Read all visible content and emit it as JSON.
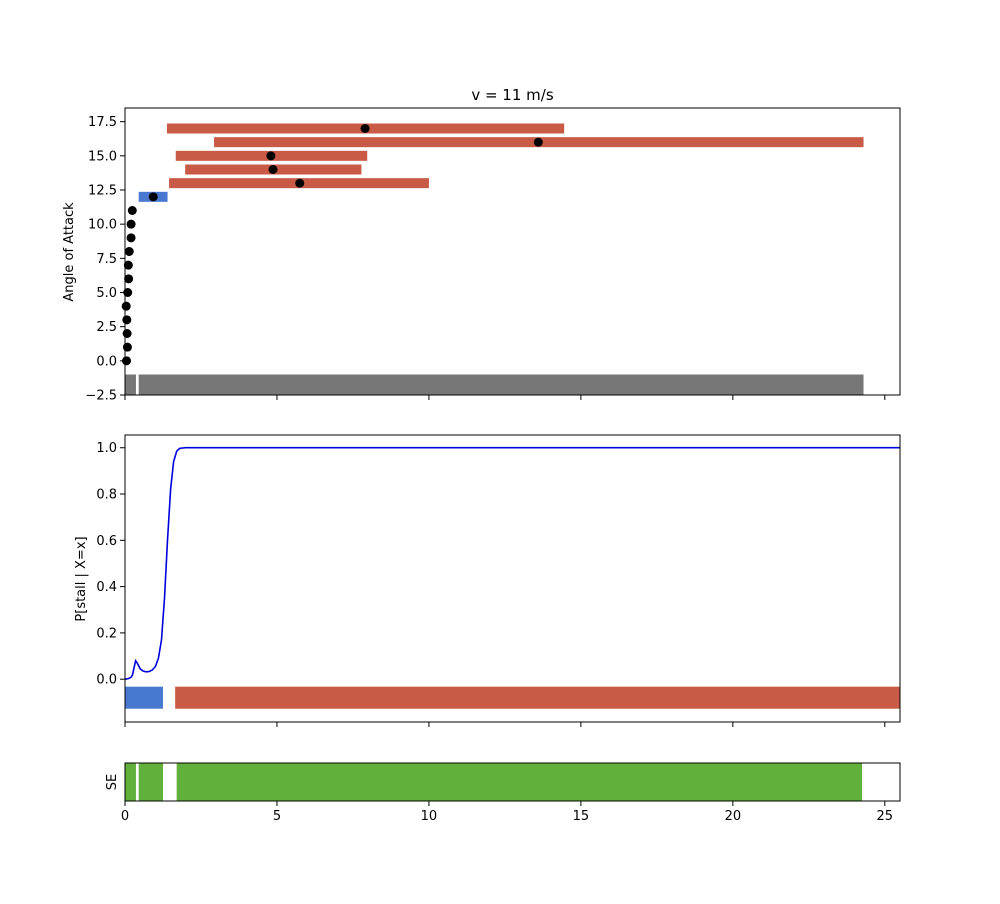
{
  "colors": {
    "red": "#c85a46",
    "blue": "#4878cf",
    "gray": "#777777",
    "green": "#62b03c",
    "curve": "#0000dd",
    "dot": "#000000"
  },
  "chart_data": [
    {
      "type": "scatter",
      "title": "v = 11 m/s",
      "ylabel": "Angle of Attack",
      "xlabel": "",
      "xlim": [
        0,
        25.5
      ],
      "ylim": [
        -2.5,
        18.5
      ],
      "yticks": [
        "−2.5",
        "0.0",
        "2.5",
        "5.0",
        "7.5",
        "10.0",
        "12.5",
        "15.0",
        "17.5"
      ],
      "ytick_values": [
        -2.5,
        0,
        2.5,
        5,
        7.5,
        10,
        12.5,
        15,
        17.5
      ],
      "xticks": [
        0,
        5,
        10,
        15,
        20,
        25
      ],
      "points": [
        {
          "x": 0.05,
          "y": 0
        },
        {
          "x": 0.08,
          "y": 1
        },
        {
          "x": 0.07,
          "y": 2
        },
        {
          "x": 0.06,
          "y": 3
        },
        {
          "x": 0.04,
          "y": 4
        },
        {
          "x": 0.09,
          "y": 5
        },
        {
          "x": 0.12,
          "y": 6
        },
        {
          "x": 0.11,
          "y": 7
        },
        {
          "x": 0.14,
          "y": 8
        },
        {
          "x": 0.2,
          "y": 9
        },
        {
          "x": 0.2,
          "y": 10
        },
        {
          "x": 0.24,
          "y": 11
        },
        {
          "x": 0.93,
          "y": 12
        },
        {
          "x": 5.75,
          "y": 13
        },
        {
          "x": 4.87,
          "y": 14
        },
        {
          "x": 4.8,
          "y": 15
        },
        {
          "x": 13.6,
          "y": 16
        },
        {
          "x": 7.9,
          "y": 17
        }
      ],
      "bars": [
        {
          "y": 12,
          "x0": 0.45,
          "x1": 1.4,
          "color": "blue"
        },
        {
          "y": 13,
          "x0": 1.45,
          "x1": 10.0,
          "color": "red"
        },
        {
          "y": 14,
          "x0": 1.98,
          "x1": 7.78,
          "color": "red"
        },
        {
          "y": 15,
          "x0": 1.67,
          "x1": 7.97,
          "color": "red"
        },
        {
          "y": 16,
          "x0": 2.93,
          "x1": 24.3,
          "color": "red"
        },
        {
          "y": 17,
          "x0": 1.38,
          "x1": 14.45,
          "color": "red"
        }
      ],
      "base_bars": [
        {
          "x0": 0.0,
          "x1": 0.36,
          "color": "gray"
        },
        {
          "x0": 0.45,
          "x1": 24.3,
          "color": "gray"
        }
      ]
    },
    {
      "type": "line",
      "ylabel": "P[stall | X=x]",
      "xlabel": "",
      "xlim": [
        0,
        25.5
      ],
      "ylim": [
        -0.185,
        1.055
      ],
      "yticks": [
        "0.0",
        "0.2",
        "0.4",
        "0.6",
        "0.8",
        "1.0"
      ],
      "ytick_values": [
        0,
        0.2,
        0.4,
        0.6,
        0.8,
        1.0
      ],
      "xticks": [
        0,
        5,
        10,
        15,
        20,
        25
      ],
      "curve": {
        "x": [
          0,
          0.1,
          0.2,
          0.25,
          0.3,
          0.35,
          0.4,
          0.5,
          0.6,
          0.7,
          0.8,
          0.9,
          1.0,
          1.1,
          1.2,
          1.3,
          1.4,
          1.5,
          1.6,
          1.7,
          1.8,
          1.9,
          2.0,
          2.2,
          2.5,
          3.0,
          5,
          10,
          15,
          20,
          25.5
        ],
        "y": [
          0.0,
          0.002,
          0.008,
          0.02,
          0.05,
          0.08,
          0.07,
          0.045,
          0.035,
          0.032,
          0.033,
          0.04,
          0.055,
          0.09,
          0.17,
          0.35,
          0.6,
          0.82,
          0.94,
          0.985,
          0.997,
          0.999,
          1.0,
          1.0,
          1.0,
          1.0,
          1.0,
          1.0,
          1.0,
          1.0,
          1.0
        ]
      },
      "band_y": -0.08,
      "bands": [
        {
          "x0": 0.0,
          "x1": 1.25,
          "color": "blue"
        },
        {
          "x0": 1.65,
          "x1": 25.5,
          "color": "red"
        }
      ]
    },
    {
      "type": "bar",
      "ylabel": "SE",
      "xlabel": "",
      "xlim": [
        0,
        25.5
      ],
      "xticks": [
        "0",
        "5",
        "10",
        "15",
        "20",
        "25"
      ],
      "xtick_values": [
        0,
        5,
        10,
        15,
        20,
        25
      ],
      "segments": [
        {
          "x0": 0.0,
          "x1": 0.36,
          "color": "green"
        },
        {
          "x0": 0.45,
          "x1": 1.25,
          "color": "green"
        },
        {
          "x0": 1.7,
          "x1": 24.25,
          "color": "green"
        }
      ]
    }
  ]
}
